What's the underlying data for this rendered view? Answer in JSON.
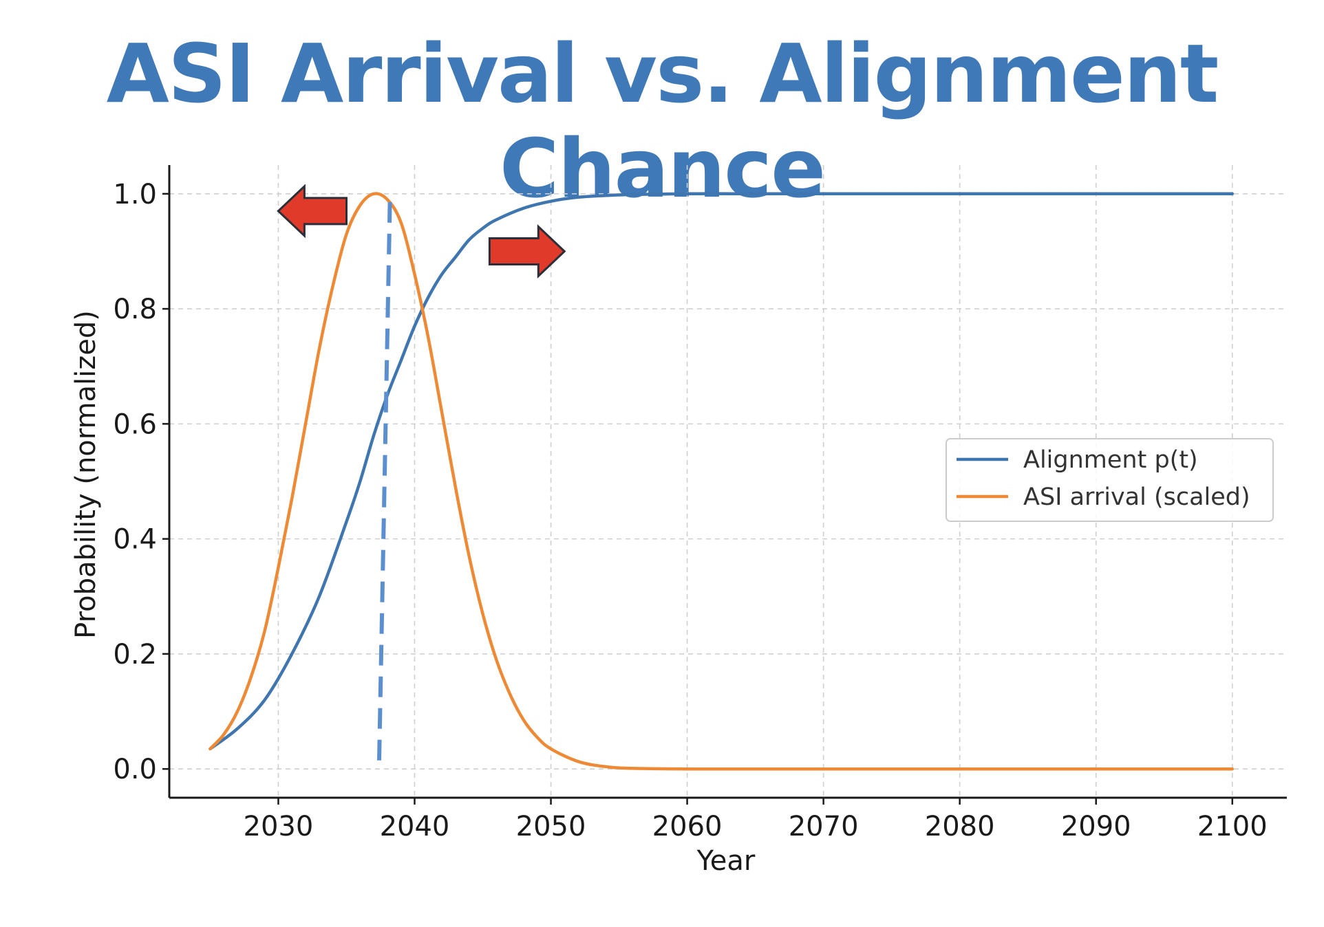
{
  "chart_data": {
    "type": "line",
    "title": "ASI Arrival vs. Alignment Chance",
    "xlabel": "Year",
    "ylabel": "Probability (normalized)",
    "xlim": [
      2022,
      2104
    ],
    "ylim": [
      -0.05,
      1.05
    ],
    "x_ticks": [
      2030,
      2040,
      2050,
      2060,
      2070,
      2080,
      2090,
      2100
    ],
    "y_ticks": [
      0.0,
      0.2,
      0.4,
      0.6,
      0.8,
      1.0
    ],
    "y_tick_labels": [
      "0.0",
      "0.2",
      "0.4",
      "0.6",
      "0.8",
      "1.0"
    ],
    "grid": true,
    "legend_position": "center-right",
    "series": [
      {
        "name": "Alignment p(t)",
        "color": "#3f76b0",
        "x": [
          2025,
          2027,
          2029,
          2031,
          2033,
          2035,
          2036,
          2037,
          2038,
          2039,
          2040,
          2041,
          2042,
          2043,
          2044,
          2045,
          2046,
          2048,
          2050,
          2052,
          2055,
          2060,
          2065,
          2070,
          2080,
          2090,
          2100
        ],
        "y": [
          0.035,
          0.07,
          0.12,
          0.2,
          0.3,
          0.43,
          0.5,
          0.58,
          0.65,
          0.71,
          0.77,
          0.82,
          0.86,
          0.89,
          0.92,
          0.94,
          0.955,
          0.975,
          0.987,
          0.994,
          0.998,
          1.0,
          1.0,
          1.0,
          1.0,
          1.0,
          1.0
        ]
      },
      {
        "name": "ASI arrival (scaled)",
        "color": "#ee8a35",
        "x": [
          2025,
          2026,
          2027,
          2028,
          2029,
          2030,
          2031,
          2032,
          2033,
          2034,
          2035,
          2036,
          2037,
          2038,
          2039,
          2040,
          2041,
          2042,
          2043,
          2044,
          2045,
          2046,
          2047,
          2048,
          2049,
          2050,
          2052,
          2054,
          2056,
          2060,
          2070,
          2080,
          2090,
          2100
        ],
        "y": [
          0.035,
          0.06,
          0.1,
          0.16,
          0.24,
          0.35,
          0.47,
          0.6,
          0.73,
          0.84,
          0.93,
          0.98,
          1.0,
          0.99,
          0.95,
          0.86,
          0.75,
          0.62,
          0.49,
          0.37,
          0.27,
          0.19,
          0.13,
          0.085,
          0.055,
          0.035,
          0.013,
          0.004,
          0.001,
          0.0,
          0.0,
          0.0,
          0.0,
          0.0
        ]
      }
    ],
    "annotations": [
      {
        "kind": "vertical-dashed-line",
        "color": "#5b8fd0",
        "x": [
          2037.4,
          2038.2
        ],
        "y": [
          0.015,
          1.0
        ]
      },
      {
        "kind": "arrow-left",
        "color": "#e03a2a",
        "x_range": [
          2030,
          2035
        ],
        "y_center": 0.97
      },
      {
        "kind": "arrow-right",
        "color": "#e03a2a",
        "x_range": [
          2045.5,
          2051
        ],
        "y_center": 0.9
      }
    ]
  }
}
